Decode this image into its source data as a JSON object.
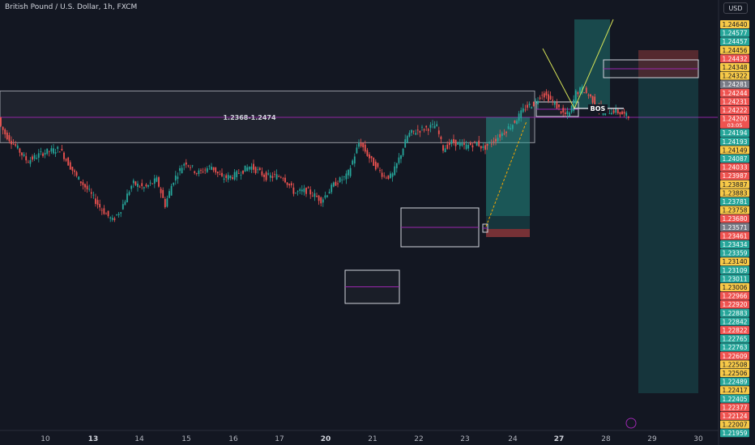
{
  "header": {
    "title": "British Pound / U.S. Dollar, 1h, FXCM",
    "currency": "USD"
  },
  "colors": {
    "background": "#131722",
    "up": "#26a69a",
    "down": "#ef5350",
    "zone_line": "#9c27b0",
    "zone_fill": "#2a2e39",
    "box_border": "#d1d4dc",
    "long_profit": "#26a69a",
    "long_stop": "#ef5350",
    "projection": "#f7a600"
  },
  "chart_data": {
    "type": "candlestick",
    "symbol": "GBPUSD",
    "timeframe": "1h",
    "y_range": [
      1.2195,
      1.2474
    ],
    "x_tick_labels": [
      {
        "label": "10",
        "bold": false
      },
      {
        "label": "13",
        "bold": true
      },
      {
        "label": "14",
        "bold": false
      },
      {
        "label": "15",
        "bold": false
      },
      {
        "label": "16",
        "bold": false
      },
      {
        "label": "17",
        "bold": false
      },
      {
        "label": "20",
        "bold": true
      },
      {
        "label": "21",
        "bold": false
      },
      {
        "label": "22",
        "bold": false
      },
      {
        "label": "23",
        "bold": false
      },
      {
        "label": "24",
        "bold": false
      },
      {
        "label": "27",
        "bold": true
      },
      {
        "label": "28",
        "bold": false
      },
      {
        "label": "29",
        "bold": false
      },
      {
        "label": "30",
        "bold": false
      }
    ],
    "price_path": [
      [
        0,
        1.2408
      ],
      [
        8,
        1.2385
      ],
      [
        20,
        1.2362
      ],
      [
        35,
        1.233
      ],
      [
        55,
        1.2348
      ],
      [
        75,
        1.2355
      ],
      [
        95,
        1.23
      ],
      [
        110,
        1.227
      ],
      [
        125,
        1.2235
      ],
      [
        140,
        1.2208
      ],
      [
        150,
        1.223
      ],
      [
        165,
        1.2285
      ],
      [
        180,
        1.2275
      ],
      [
        195,
        1.2292
      ],
      [
        205,
        1.224
      ],
      [
        215,
        1.229
      ],
      [
        230,
        1.233
      ],
      [
        245,
        1.2305
      ],
      [
        262,
        1.232
      ],
      [
        275,
        1.2295
      ],
      [
        290,
        1.23
      ],
      [
        310,
        1.232
      ],
      [
        330,
        1.2298
      ],
      [
        350,
        1.23
      ],
      [
        365,
        1.2265
      ],
      [
        380,
        1.227
      ],
      [
        398,
        1.225
      ],
      [
        415,
        1.2285
      ],
      [
        430,
        1.23
      ],
      [
        445,
        1.237
      ],
      [
        460,
        1.233
      ],
      [
        475,
        1.23
      ],
      [
        485,
        1.2298
      ],
      [
        495,
        1.234
      ],
      [
        505,
        1.2385
      ],
      [
        520,
        1.2395
      ],
      [
        540,
        1.2403
      ],
      [
        548,
        1.2355
      ],
      [
        560,
        1.237
      ],
      [
        575,
        1.236
      ],
      [
        590,
        1.2368
      ],
      [
        598,
        1.2356
      ],
      [
        605,
        1.2365
      ],
      [
        620,
        1.2385
      ],
      [
        635,
        1.2408
      ],
      [
        650,
        1.244
      ],
      [
        662,
        1.245
      ],
      [
        670,
        1.247
      ],
      [
        680,
        1.2458
      ],
      [
        690,
        1.244
      ],
      [
        698,
        1.2425
      ],
      [
        705,
        1.2428
      ],
      [
        712,
        1.247
      ],
      [
        720,
        1.2478
      ],
      [
        728,
        1.2465
      ],
      [
        736,
        1.245
      ],
      [
        744,
        1.243
      ],
      [
        752,
        1.2432
      ],
      [
        760,
        1.2434
      ],
      [
        768,
        1.2428
      ],
      [
        778,
        1.242
      ]
    ],
    "zones": [
      {
        "type": "supply_demand",
        "label": "1.2368-1.2474",
        "low": 1.2368,
        "high": 1.2474
      }
    ],
    "annotations": [
      {
        "type": "label",
        "text": "BOS"
      }
    ],
    "price_scale_labels": [
      {
        "value": "1.24640",
        "style": "yellow"
      },
      {
        "value": "1.24577",
        "style": "green"
      },
      {
        "value": "1.24457",
        "style": "green"
      },
      {
        "value": "1.24456",
        "style": "yellow"
      },
      {
        "value": "1.24432",
        "style": "red"
      },
      {
        "value": "1.24348",
        "style": "yellow"
      },
      {
        "value": "1.24322",
        "style": "yellow"
      },
      {
        "value": "1.24281",
        "style": "gray"
      },
      {
        "value": "1.24244",
        "style": "red"
      },
      {
        "value": "1.24231",
        "style": "red"
      },
      {
        "value": "1.24222",
        "style": "red"
      },
      {
        "value": "1.24200",
        "style": "red",
        "sub": "03:05"
      },
      {
        "value": "1.24194",
        "style": "green"
      },
      {
        "value": "1.24193",
        "style": "green"
      },
      {
        "value": "1.24149",
        "style": "yellow"
      },
      {
        "value": "1.24087",
        "style": "green"
      },
      {
        "value": "1.24033",
        "style": "red"
      },
      {
        "value": "1.23987",
        "style": "red"
      },
      {
        "value": "1.23887",
        "style": "yellow"
      },
      {
        "value": "1.23883",
        "style": "yellow"
      },
      {
        "value": "1.23781",
        "style": "green"
      },
      {
        "value": "1.23758",
        "style": "yellow"
      },
      {
        "value": "1.23680",
        "style": "red"
      },
      {
        "value": "1.23571",
        "style": "gray"
      },
      {
        "value": "1.23461",
        "style": "red"
      },
      {
        "value": "1.23434",
        "style": "green"
      },
      {
        "value": "1.23359",
        "style": "green"
      },
      {
        "value": "1.23140",
        "style": "yellow"
      },
      {
        "value": "1.23109",
        "style": "green"
      },
      {
        "value": "1.23011",
        "style": "green"
      },
      {
        "value": "1.23006",
        "style": "yellow"
      },
      {
        "value": "1.22966",
        "style": "red"
      },
      {
        "value": "1.22920",
        "style": "red"
      },
      {
        "value": "1.22883",
        "style": "green"
      },
      {
        "value": "1.22842",
        "style": "green"
      },
      {
        "value": "1.22822",
        "style": "red"
      },
      {
        "value": "1.22765",
        "style": "green"
      },
      {
        "value": "1.22763",
        "style": "green"
      },
      {
        "value": "1.22609",
        "style": "red"
      },
      {
        "value": "1.22508",
        "style": "yellow"
      },
      {
        "value": "1.22506",
        "style": "yellow"
      },
      {
        "value": "1.22489",
        "style": "green"
      },
      {
        "value": "1.22417",
        "style": "yellow"
      },
      {
        "value": "1.22405",
        "style": "green"
      },
      {
        "value": "1.22377",
        "style": "red"
      },
      {
        "value": "1.22124",
        "style": "red"
      },
      {
        "value": "1.22007",
        "style": "yellow"
      },
      {
        "value": "1.21959",
        "style": "green"
      }
    ]
  }
}
